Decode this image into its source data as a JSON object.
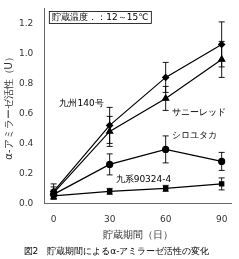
{
  "chart_data": {
    "type": "line",
    "xlabel": "貯蔵期間（日）",
    "ylabel": "α-アミラーゼ活性（U）",
    "annotation": "貯蔵温度．：12～15℃",
    "caption": "図2　貯蔵期間によるα-アミラーゼ活性の変化",
    "x": [
      0,
      30,
      60,
      90
    ],
    "xlim": [
      -5,
      95
    ],
    "ylim": [
      0,
      1.3
    ],
    "xticks": [
      0,
      30,
      60,
      90
    ],
    "yticks": [
      {
        "value": 0.0,
        "label": "0.0"
      },
      0.2,
      0.4,
      0.6,
      0.8,
      {
        "value": 1.0,
        "label": "1.0"
      },
      1.2
    ],
    "grid": false,
    "legend": false,
    "series": [
      {
        "name": "九州140号",
        "color": "#000000",
        "marker": "diamond",
        "line_style": "solid",
        "values": [
          0.08,
          0.52,
          0.84,
          1.06
        ],
        "yerr": [
          0.05,
          0.12,
          0.1,
          0.15
        ]
      },
      {
        "name": "サニーレッド",
        "color": "#000000",
        "marker": "triangle",
        "line_style": "solid",
        "values": [
          0.07,
          0.48,
          0.7,
          0.96
        ],
        "yerr": [
          0.04,
          0.1,
          0.08,
          0.12
        ]
      },
      {
        "name": "シロユタカ",
        "color": "#000000",
        "marker": "circle",
        "line_style": "solid",
        "values": [
          0.06,
          0.26,
          0.36,
          0.28
        ],
        "yerr": [
          0.03,
          0.07,
          0.09,
          0.06
        ]
      },
      {
        "name": "九系90324-4",
        "color": "#000000",
        "marker": "square",
        "line_style": "solid",
        "values": [
          0.05,
          0.08,
          0.1,
          0.13
        ],
        "yerr": [
          0.02,
          0.02,
          0.02,
          0.04
        ]
      }
    ]
  }
}
